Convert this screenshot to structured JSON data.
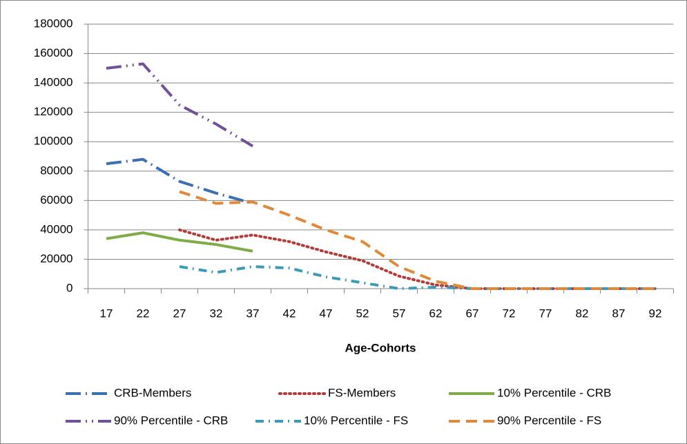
{
  "chart_data": {
    "type": "line",
    "x_label": "Age-Cohorts",
    "categories": [
      "17",
      "22",
      "27",
      "32",
      "37",
      "42",
      "47",
      "52",
      "57",
      "62",
      "67",
      "72",
      "77",
      "82",
      "87",
      "92"
    ],
    "ylim": [
      0,
      180000
    ],
    "yticks": [
      0,
      20000,
      40000,
      60000,
      80000,
      100000,
      120000,
      140000,
      160000,
      180000
    ],
    "grid": true,
    "legend": "bottom",
    "series": [
      {
        "name": "CRB-Members",
        "color": "#3c6eb4",
        "dash": "long-dash-dot",
        "values": [
          85000,
          88000,
          73000,
          65000,
          58000,
          null,
          null,
          null,
          null,
          null,
          null,
          null,
          null,
          null,
          null,
          null
        ]
      },
      {
        "name": "FS-Members",
        "color": "#b33a36",
        "dash": "dot",
        "values": [
          null,
          null,
          40000,
          33000,
          36500,
          32000,
          25000,
          19000,
          8500,
          2500,
          0,
          0,
          0,
          0,
          0,
          0
        ]
      },
      {
        "name": "10% Percentile - CRB",
        "color": "#7fac46",
        "dash": "solid",
        "values": [
          34000,
          38000,
          33000,
          30000,
          25500,
          null,
          null,
          null,
          null,
          null,
          null,
          null,
          null,
          null,
          null,
          null
        ]
      },
      {
        "name": "90% Percentile - CRB",
        "color": "#71509a",
        "dash": "long-dash-dot-dot",
        "values": [
          150000,
          153000,
          125000,
          112000,
          97000,
          null,
          null,
          null,
          null,
          null,
          null,
          null,
          null,
          null,
          null,
          null
        ]
      },
      {
        "name": "10% Percentile - FS",
        "color": "#3b9ab8",
        "dash": "dash-dot",
        "values": [
          null,
          null,
          15000,
          11000,
          15000,
          14000,
          8000,
          4000,
          0,
          1000,
          0,
          0,
          0,
          0,
          0,
          0
        ]
      },
      {
        "name": "90% Percentile - FS",
        "color": "#e0893a",
        "dash": "dash",
        "values": [
          null,
          null,
          66000,
          58000,
          59000,
          50000,
          40000,
          32000,
          15000,
          5000,
          0,
          0,
          0,
          0,
          0,
          0
        ]
      }
    ]
  }
}
